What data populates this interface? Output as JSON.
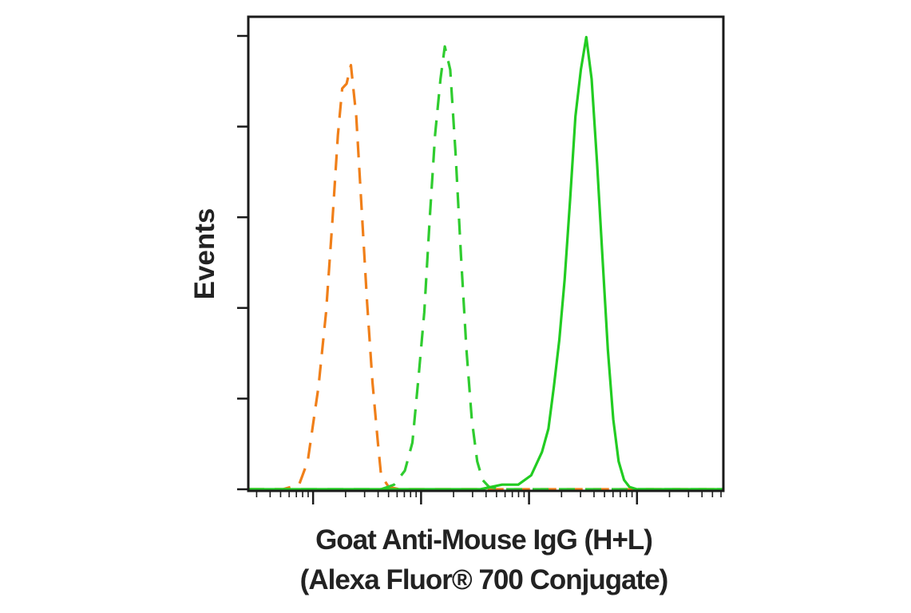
{
  "chart_data": {
    "type": "line",
    "title": "",
    "xlabel_line1": "Goat Anti-Mouse IgG (H+L)",
    "xlabel_line2": "(Alexa Fluor® 700 Conjugate)",
    "ylabel": "Events",
    "x_scale": "log",
    "xlim": [
      -0.6,
      3.8
    ],
    "ylim": [
      0,
      100
    ],
    "grid": false,
    "legend": "none",
    "series": [
      {
        "color": "#f07f19",
        "dashed": true,
        "points": [
          [
            -0.6,
            0
          ],
          [
            -0.28,
            0
          ],
          [
            -0.13,
            1
          ],
          [
            -0.05,
            6
          ],
          [
            0.05,
            22
          ],
          [
            0.12,
            38
          ],
          [
            0.18,
            58
          ],
          [
            0.23,
            76
          ],
          [
            0.27,
            86
          ],
          [
            0.31,
            87
          ],
          [
            0.35,
            91
          ],
          [
            0.4,
            80
          ],
          [
            0.45,
            60
          ],
          [
            0.5,
            40
          ],
          [
            0.55,
            23
          ],
          [
            0.6,
            10
          ],
          [
            0.63,
            3
          ],
          [
            0.7,
            0.5
          ],
          [
            0.8,
            0
          ],
          [
            3.8,
            0
          ]
        ]
      },
      {
        "color": "#2fcc2f",
        "dashed": true,
        "points": [
          [
            -0.6,
            0
          ],
          [
            0.63,
            0
          ],
          [
            0.75,
            1
          ],
          [
            0.85,
            4
          ],
          [
            0.92,
            10
          ],
          [
            0.98,
            25
          ],
          [
            1.03,
            38
          ],
          [
            1.08,
            58
          ],
          [
            1.13,
            76
          ],
          [
            1.18,
            88
          ],
          [
            1.22,
            95
          ],
          [
            1.27,
            90
          ],
          [
            1.32,
            72
          ],
          [
            1.37,
            50
          ],
          [
            1.42,
            30
          ],
          [
            1.47,
            15
          ],
          [
            1.52,
            6
          ],
          [
            1.57,
            2
          ],
          [
            1.63,
            0.5
          ],
          [
            1.75,
            0
          ],
          [
            3.8,
            0
          ]
        ]
      },
      {
        "color": "#22cc22",
        "dashed": false,
        "points": [
          [
            -0.6,
            0
          ],
          [
            1.55,
            0
          ],
          [
            1.75,
            1
          ],
          [
            1.9,
            1
          ],
          [
            2.02,
            3
          ],
          [
            2.12,
            8
          ],
          [
            2.18,
            13
          ],
          [
            2.23,
            22
          ],
          [
            2.28,
            32
          ],
          [
            2.33,
            45
          ],
          [
            2.38,
            62
          ],
          [
            2.43,
            80
          ],
          [
            2.48,
            90
          ],
          [
            2.53,
            97
          ],
          [
            2.58,
            88
          ],
          [
            2.63,
            70
          ],
          [
            2.68,
            50
          ],
          [
            2.73,
            30
          ],
          [
            2.78,
            15
          ],
          [
            2.83,
            6
          ],
          [
            2.88,
            2
          ],
          [
            2.93,
            0.5
          ],
          [
            3.0,
            0
          ],
          [
            3.8,
            0
          ]
        ]
      }
    ]
  }
}
